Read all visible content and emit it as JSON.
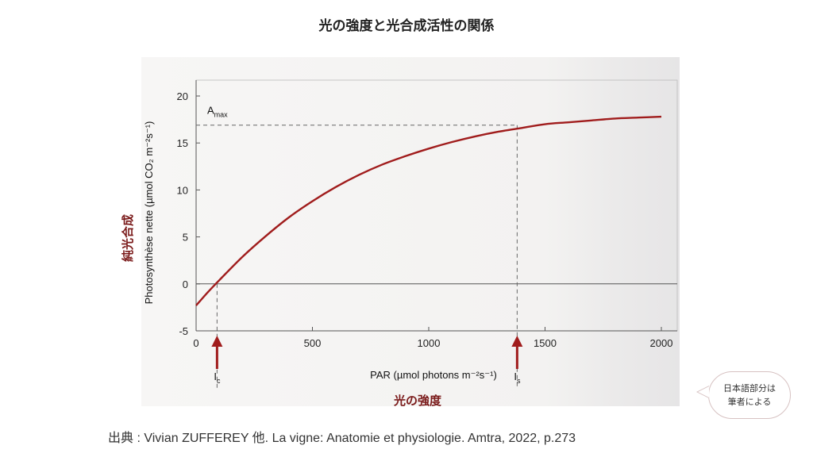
{
  "slide": {
    "title": "光の強度と光合成活性の関係",
    "y_label_jp": "純光合成",
    "x_label_jp": "光の強度",
    "credit": "出典 : Vivian ZUFFEREY 他. La vigne: Anatomie et physiologie. Amtra, 2022, p.273",
    "note_line1": "日本語部分は",
    "note_line2": "筆者による"
  },
  "colors": {
    "curve": "#a01c1c",
    "arrow": "#a01c1c",
    "jp_label": "#7a1a1a",
    "axis": "#555555"
  },
  "chart_data": {
    "type": "line",
    "xlabel": "PAR (µmol photons m⁻²s⁻¹)",
    "ylabel": "Photosynthèse nette (µmol CO₂ m⁻²s⁻¹)",
    "xlim": [
      0,
      2000
    ],
    "ylim": [
      -5,
      20
    ],
    "xticks": [
      0,
      500,
      1000,
      1500,
      2000
    ],
    "yticks": [
      -5,
      0,
      5,
      10,
      15,
      20
    ],
    "grid": false,
    "series": [
      {
        "x": [
          0,
          50,
          100,
          200,
          300,
          400,
          500,
          600,
          700,
          800,
          900,
          1000,
          1100,
          1200,
          1300,
          1400,
          1500,
          1600,
          1700,
          1800,
          1900,
          2000
        ],
        "y": [
          -2.3,
          -0.9,
          0.4,
          2.9,
          5.1,
          7.1,
          8.8,
          10.3,
          11.6,
          12.7,
          13.6,
          14.4,
          15.1,
          15.7,
          16.2,
          16.6,
          17.0,
          17.2,
          17.4,
          17.6,
          17.7,
          17.8
        ]
      }
    ],
    "annotations": {
      "amax": {
        "label": "A",
        "sub": "max",
        "y": 16.9
      },
      "ic": {
        "label": "I",
        "sub": "c",
        "x": 90
      },
      "is": {
        "label": "I",
        "sub": "s",
        "x": 1380
      }
    }
  }
}
